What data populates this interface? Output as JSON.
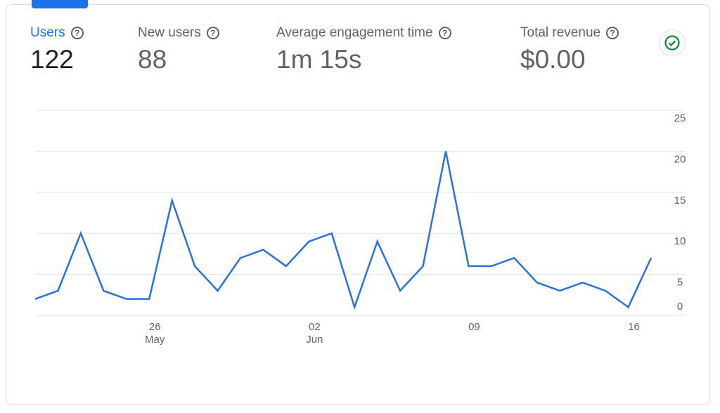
{
  "metrics": [
    {
      "label": "Users",
      "value": "122",
      "active": true
    },
    {
      "label": "New users",
      "value": "88"
    },
    {
      "label": "Average engagement time",
      "value": "1m 15s"
    },
    {
      "label": "Total revenue",
      "value": "$0.00"
    }
  ],
  "chart_data": {
    "type": "line",
    "categories": [
      null,
      null,
      null,
      null,
      null,
      "26 May",
      null,
      null,
      null,
      null,
      null,
      null,
      "02 Jun",
      null,
      null,
      null,
      null,
      null,
      null,
      "09",
      null,
      null,
      null,
      null,
      null,
      null,
      "16",
      null
    ],
    "series": [
      {
        "name": "Users",
        "color": "#2a72d8",
        "values": [
          2,
          3,
          10,
          3,
          2,
          2,
          14,
          6,
          3,
          7,
          8,
          6,
          9,
          10,
          1,
          9,
          3,
          6,
          20,
          6,
          6,
          7,
          4,
          3,
          4,
          3,
          1,
          7
        ]
      }
    ],
    "ylim": [
      0,
      25
    ],
    "yticks": [
      0,
      5,
      10,
      15,
      20,
      25
    ],
    "grid": true,
    "y_axis_side": "right"
  }
}
